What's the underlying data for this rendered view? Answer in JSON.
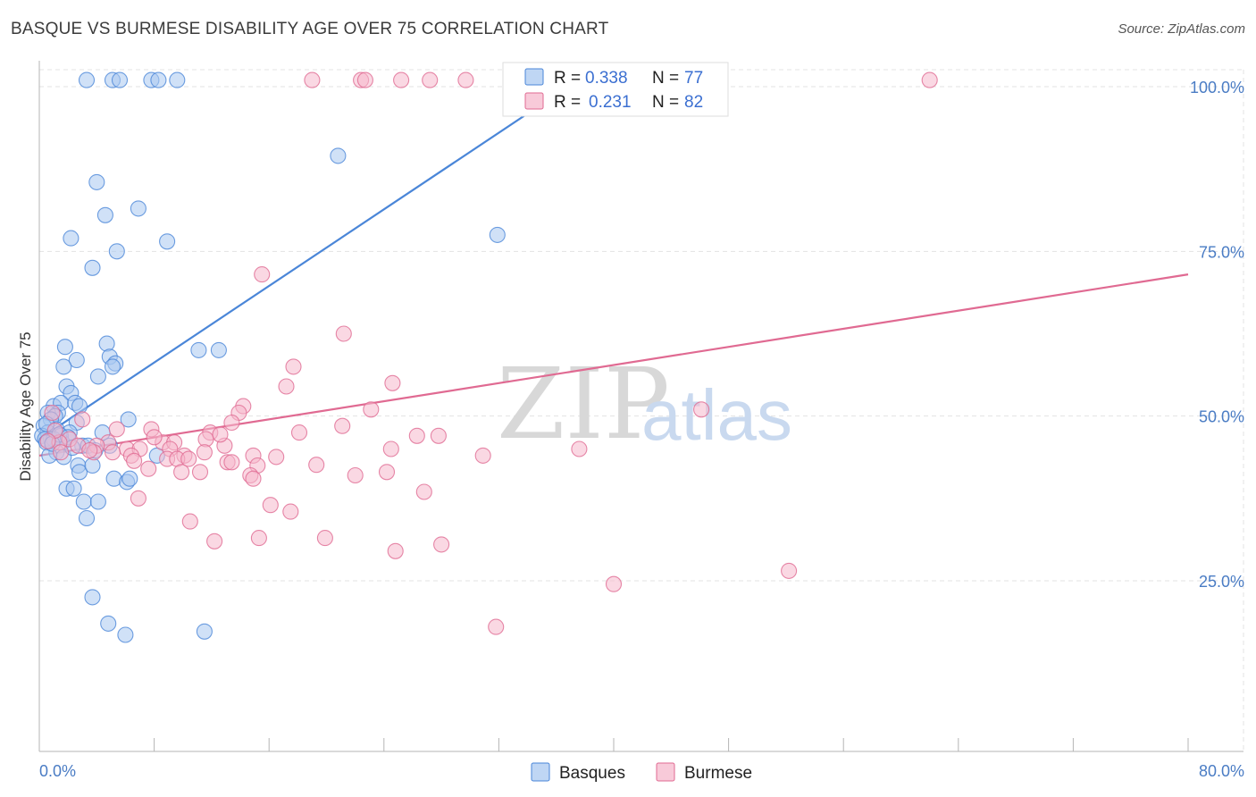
{
  "title": "BASQUE VS BURMESE DISABILITY AGE OVER 75 CORRELATION CHART",
  "source": "Source: ZipAtlas.com",
  "watermark": {
    "zip": "ZIP",
    "atlas": "atlas"
  },
  "colors": {
    "basques": "#4a86d8",
    "basques_fill": "#a9c8f0",
    "burmese": "#e06a92",
    "burmese_fill": "#f5b8cc",
    "grid": "#e3e3e3",
    "tick_text": "#4a7cc4"
  },
  "legend": {
    "basques": {
      "r_label": "R =",
      "r_value": "0.338",
      "n_label": "N =",
      "n_value": "77"
    },
    "burmese": {
      "r_label": "R =",
      "r_value": "0.231",
      "n_label": "N =",
      "n_value": "82"
    }
  },
  "chart_data": {
    "type": "scatter",
    "title": "BASQUE VS BURMESE DISABILITY AGE OVER 75 CORRELATION CHART",
    "xlabel": "",
    "ylabel": "Disability Age Over 75",
    "xlim": [
      0,
      80
    ],
    "ylim": [
      0,
      105
    ],
    "x_tick_labels": [
      "0.0%",
      "80.0%"
    ],
    "y_ticks": [
      25,
      50,
      75,
      100
    ],
    "y_tick_labels": [
      "25.0%",
      "50.0%",
      "75.0%",
      "100.0%"
    ],
    "legend_position": "top-center",
    "series": [
      {
        "name": "Basques",
        "r": 0.338,
        "n": 77,
        "trend": {
          "x0": 0,
          "y0": 46.5,
          "x1": 37.5,
          "y1": 101.0
        },
        "points": [
          [
            3.3,
            101
          ],
          [
            5.1,
            101
          ],
          [
            5.6,
            101
          ],
          [
            7.8,
            101
          ],
          [
            8.3,
            101
          ],
          [
            9.6,
            101
          ],
          [
            20.8,
            89.5
          ],
          [
            4.0,
            85.5
          ],
          [
            4.6,
            80.5
          ],
          [
            6.9,
            81.5
          ],
          [
            2.2,
            77
          ],
          [
            8.9,
            76.5
          ],
          [
            5.4,
            75
          ],
          [
            3.7,
            72.5
          ],
          [
            31.9,
            77.5
          ],
          [
            11.1,
            60
          ],
          [
            12.5,
            60
          ],
          [
            4.7,
            61
          ],
          [
            1.8,
            60.5
          ],
          [
            4.9,
            59
          ],
          [
            2.6,
            58.5
          ],
          [
            1.7,
            57.5
          ],
          [
            5.3,
            58
          ],
          [
            5.1,
            57.5
          ],
          [
            4.1,
            56
          ],
          [
            1.9,
            54.5
          ],
          [
            2.2,
            53.5
          ],
          [
            1.0,
            51.5
          ],
          [
            1.5,
            52
          ],
          [
            2.5,
            52
          ],
          [
            2.8,
            51.5
          ],
          [
            1.3,
            50.5
          ],
          [
            0.6,
            50.5
          ],
          [
            1.1,
            50
          ],
          [
            0.8,
            49.5
          ],
          [
            6.2,
            49.5
          ],
          [
            2.6,
            49
          ],
          [
            0.3,
            48.5
          ],
          [
            1.2,
            48
          ],
          [
            0.6,
            47.5
          ],
          [
            2.1,
            47.5
          ],
          [
            0.2,
            47
          ],
          [
            1.5,
            47
          ],
          [
            0.8,
            46.5
          ],
          [
            4.4,
            47.5
          ],
          [
            0.4,
            46.5
          ],
          [
            1.0,
            46.5
          ],
          [
            1.6,
            46
          ],
          [
            0.5,
            46
          ],
          [
            3.0,
            45.5
          ],
          [
            4.9,
            45.5
          ],
          [
            3.4,
            45.5
          ],
          [
            1.2,
            44.5
          ],
          [
            0.7,
            44
          ],
          [
            8.2,
            44
          ],
          [
            2.7,
            42.5
          ],
          [
            2.8,
            41.5
          ],
          [
            3.7,
            42.5
          ],
          [
            5.2,
            40.5
          ],
          [
            6.1,
            40
          ],
          [
            6.3,
            40.5
          ],
          [
            1.9,
            39
          ],
          [
            2.4,
            39
          ],
          [
            3.1,
            37
          ],
          [
            4.1,
            37
          ],
          [
            3.3,
            34.5
          ],
          [
            3.7,
            22.5
          ],
          [
            4.8,
            18.5
          ],
          [
            6.0,
            16.8
          ],
          [
            11.5,
            17.3
          ],
          [
            1.4,
            47.2
          ],
          [
            0.9,
            45.8
          ],
          [
            2.0,
            46.8
          ],
          [
            1.7,
            43.8
          ],
          [
            3.9,
            44.8
          ],
          [
            0.5,
            48.8
          ],
          [
            2.3,
            45.2
          ]
        ]
      },
      {
        "name": "Burmese",
        "r": 0.231,
        "n": 82,
        "trend": {
          "x0": 0,
          "y0": 44.0,
          "x1": 80,
          "y1": 71.5
        },
        "points": [
          [
            19.0,
            101
          ],
          [
            22.4,
            101
          ],
          [
            22.7,
            101
          ],
          [
            25.2,
            101
          ],
          [
            27.2,
            101
          ],
          [
            29.7,
            101
          ],
          [
            62.0,
            101
          ],
          [
            15.5,
            71.5
          ],
          [
            21.2,
            62.5
          ],
          [
            17.7,
            57.5
          ],
          [
            17.2,
            54.5
          ],
          [
            24.6,
            55
          ],
          [
            46.1,
            51
          ],
          [
            14.2,
            51.5
          ],
          [
            23.1,
            51
          ],
          [
            13.9,
            50.5
          ],
          [
            0.9,
            50.5
          ],
          [
            3.0,
            49.5
          ],
          [
            13.4,
            49
          ],
          [
            21.1,
            48.5
          ],
          [
            7.8,
            48
          ],
          [
            5.4,
            48
          ],
          [
            11.9,
            47.5
          ],
          [
            18.1,
            47.5
          ],
          [
            26.3,
            47
          ],
          [
            27.8,
            47
          ],
          [
            2.1,
            46.5
          ],
          [
            1.4,
            46
          ],
          [
            4.8,
            46
          ],
          [
            11.6,
            46.5
          ],
          [
            8.6,
            46
          ],
          [
            9.4,
            46
          ],
          [
            2.7,
            45.5
          ],
          [
            4.0,
            45.5
          ],
          [
            6.1,
            45
          ],
          [
            7.0,
            45
          ],
          [
            9.1,
            45
          ],
          [
            12.9,
            45.5
          ],
          [
            24.5,
            45
          ],
          [
            1.5,
            44.5
          ],
          [
            3.8,
            44.5
          ],
          [
            5.1,
            44.5
          ],
          [
            10.1,
            44
          ],
          [
            11.5,
            44.5
          ],
          [
            14.9,
            44
          ],
          [
            30.9,
            44
          ],
          [
            37.6,
            45
          ],
          [
            6.4,
            44
          ],
          [
            8.9,
            43.5
          ],
          [
            9.6,
            43.5
          ],
          [
            10.4,
            43.5
          ],
          [
            13.1,
            43
          ],
          [
            13.4,
            43
          ],
          [
            15.2,
            42.5
          ],
          [
            7.6,
            42
          ],
          [
            9.9,
            41.5
          ],
          [
            11.2,
            41.5
          ],
          [
            14.7,
            41
          ],
          [
            22.0,
            41
          ],
          [
            24.2,
            41.5
          ],
          [
            14.9,
            40.5
          ],
          [
            6.9,
            37.5
          ],
          [
            16.1,
            36.5
          ],
          [
            17.5,
            35.5
          ],
          [
            26.8,
            38.5
          ],
          [
            10.5,
            34
          ],
          [
            12.2,
            31
          ],
          [
            15.3,
            31.5
          ],
          [
            19.9,
            31.5
          ],
          [
            28.0,
            30.5
          ],
          [
            24.8,
            29.5
          ],
          [
            40.0,
            24.5
          ],
          [
            52.2,
            26.5
          ],
          [
            31.8,
            18
          ],
          [
            3.5,
            44.8
          ],
          [
            1.1,
            47.8
          ],
          [
            6.6,
            43.2
          ],
          [
            8.0,
            46.8
          ],
          [
            12.6,
            47.2
          ],
          [
            16.5,
            43.8
          ],
          [
            19.3,
            42.6
          ],
          [
            0.6,
            46.2
          ]
        ]
      }
    ]
  },
  "bottom_legend": {
    "basques_label": "Basques",
    "burmese_label": "Burmese"
  }
}
